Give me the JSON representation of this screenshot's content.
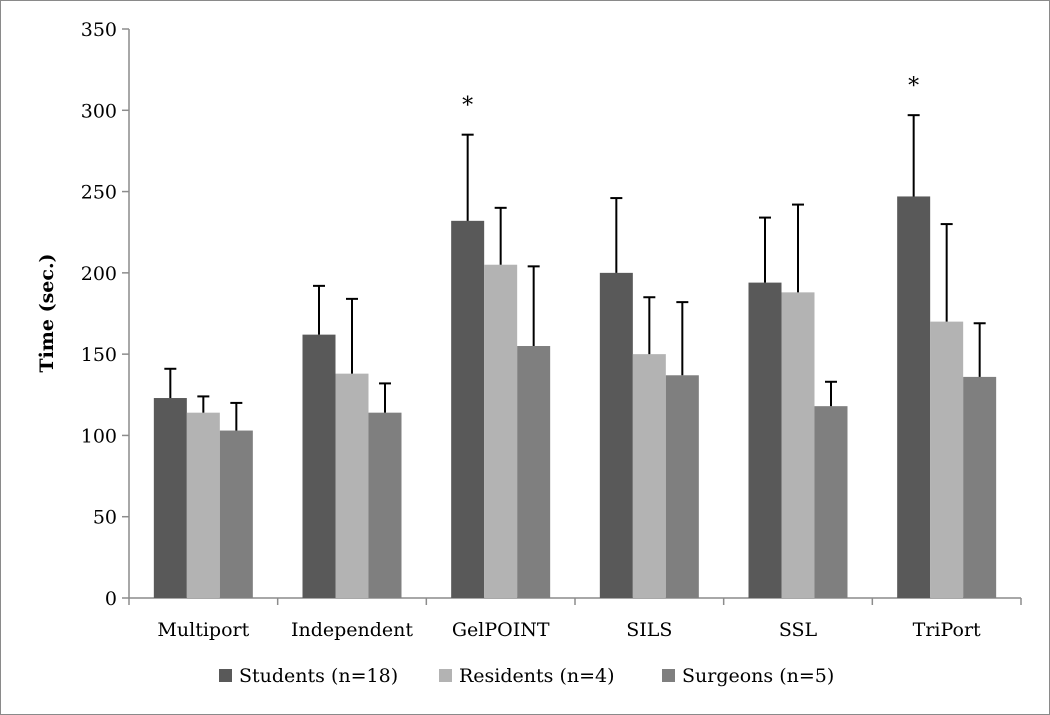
{
  "chart_data": {
    "type": "bar",
    "title": "",
    "xlabel": "",
    "ylabel": "Time (sec.)",
    "ylim": [
      0,
      350
    ],
    "yticks": [
      0,
      50,
      100,
      150,
      200,
      250,
      300,
      350
    ],
    "categories": [
      "Multiport",
      "Independent",
      "GelPOINT",
      "SILS",
      "SSL",
      "TriPort"
    ],
    "series": [
      {
        "name": "Students (n=18)",
        "color": "#595959",
        "values": [
          123,
          162,
          232,
          200,
          194,
          247
        ],
        "errors": [
          18,
          30,
          53,
          46,
          40,
          50
        ]
      },
      {
        "name": "Residents (n=4)",
        "color": "#b3b3b3",
        "values": [
          114,
          138,
          205,
          150,
          188,
          170
        ],
        "errors": [
          10,
          46,
          35,
          35,
          54,
          60
        ]
      },
      {
        "name": "Surgeons (n=5)",
        "color": "#7f7f7f",
        "values": [
          103,
          114,
          155,
          137,
          118,
          136
        ],
        "errors": [
          17,
          18,
          49,
          45,
          15,
          33
        ]
      }
    ],
    "annotations": [
      {
        "category": "GelPOINT",
        "text": "*"
      },
      {
        "category": "TriPort",
        "text": "*"
      }
    ],
    "legend_position": "bottom",
    "grid": false
  }
}
